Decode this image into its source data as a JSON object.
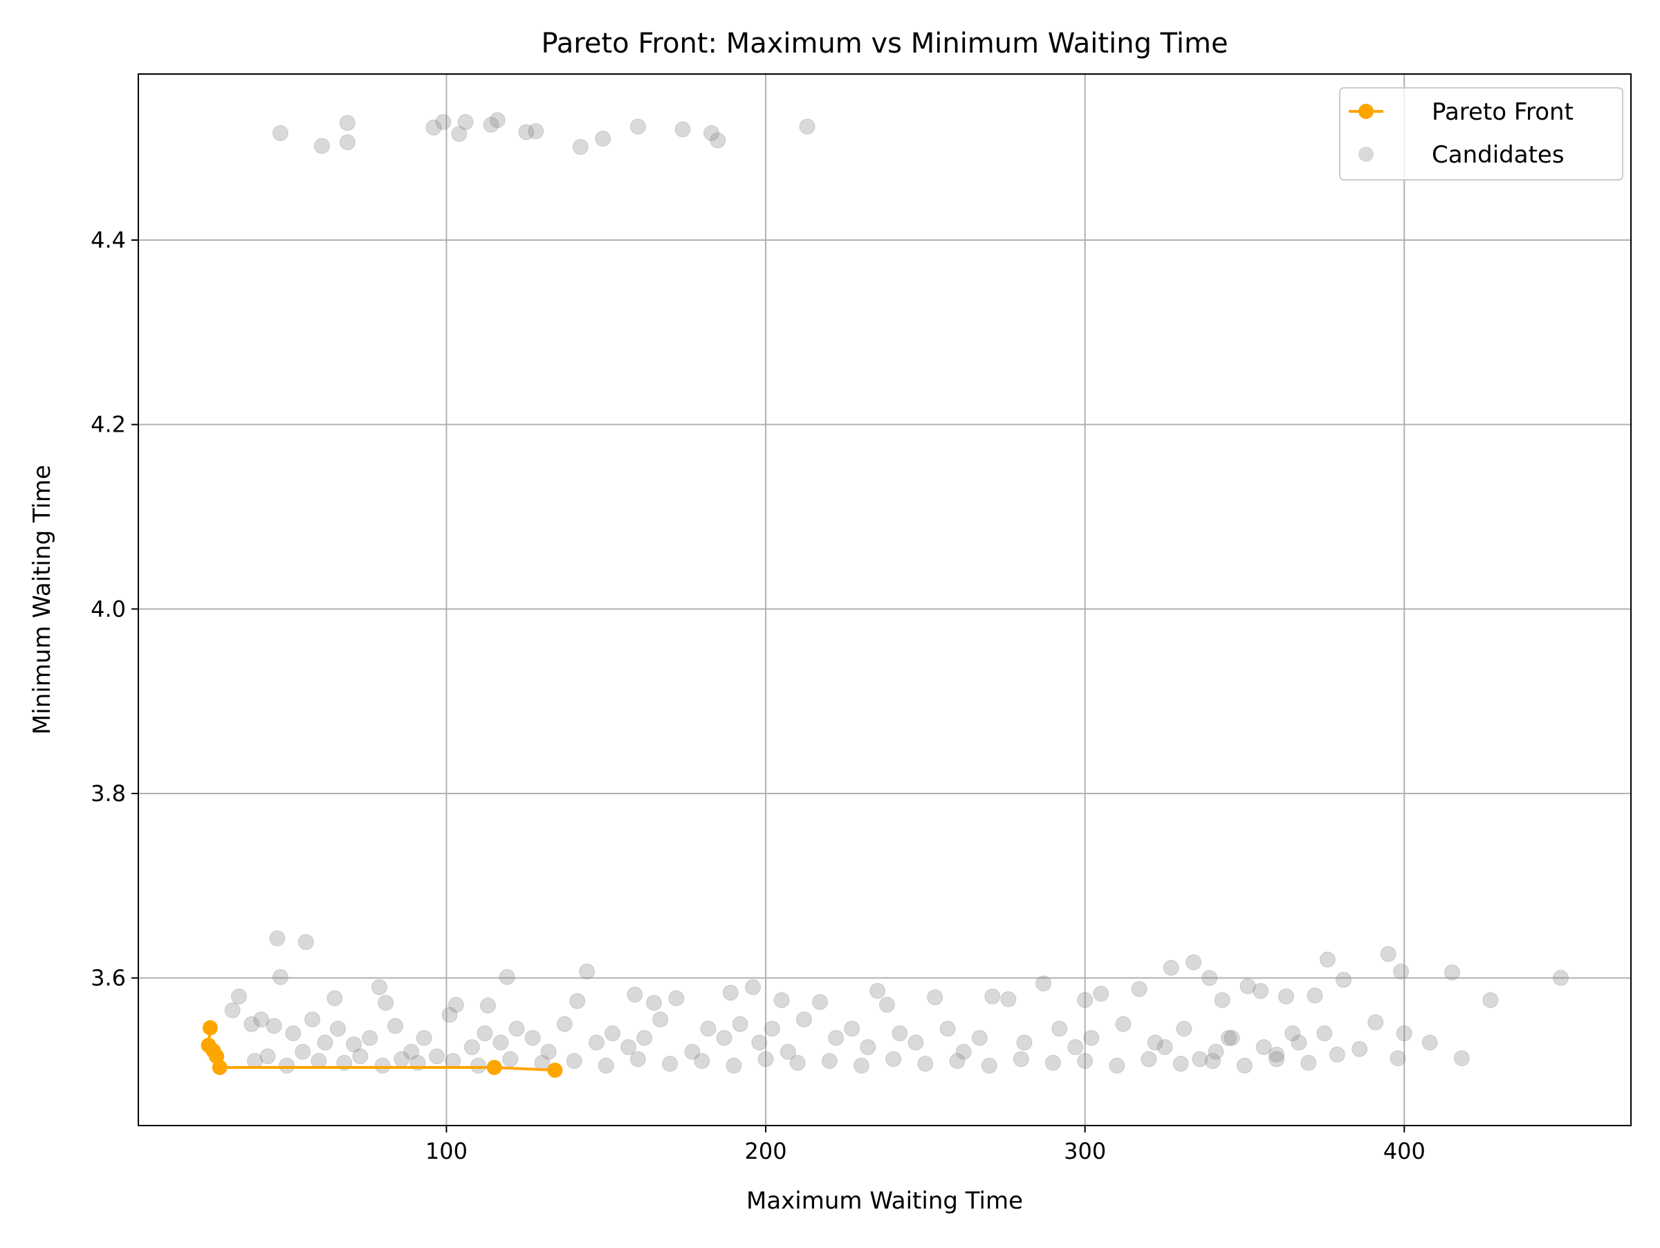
{
  "chart_data": {
    "type": "scatter",
    "title": "Pareto Front: Maximum vs Minimum Waiting Time",
    "xlabel": "Maximum Waiting Time",
    "ylabel": "Minimum Waiting Time",
    "xlim": [
      3.5,
      471
    ],
    "ylim": [
      3.44,
      4.58
    ],
    "x_ticks": [
      100,
      200,
      300,
      400
    ],
    "y_ticks": [
      3.6,
      3.8,
      4.0,
      4.2,
      4.4
    ],
    "x_tick_labels": [
      "100",
      "200",
      "300",
      "400"
    ],
    "y_tick_labels": [
      "3.6",
      "3.8",
      "4.0",
      "4.2",
      "4.4"
    ],
    "grid": true,
    "legend_position": "top-right",
    "colors": {
      "pareto": "#FFA500",
      "candidates": "#808080"
    },
    "series": [
      {
        "name": "Pareto Front",
        "kind": "line-with-markers",
        "points": [
          [
            26,
            3.546
          ],
          [
            25.5,
            3.527
          ],
          [
            27,
            3.521
          ],
          [
            28,
            3.515
          ],
          [
            29,
            3.503
          ],
          [
            115,
            3.503
          ],
          [
            134,
            3.5
          ]
        ]
      },
      {
        "name": "Candidates",
        "kind": "scatter",
        "points": [
          [
            48,
            4.516
          ],
          [
            61,
            4.502
          ],
          [
            69,
            4.527
          ],
          [
            69,
            4.506
          ],
          [
            96,
            4.522
          ],
          [
            99,
            4.528
          ],
          [
            104,
            4.515
          ],
          [
            106,
            4.528
          ],
          [
            114,
            4.525
          ],
          [
            116,
            4.53
          ],
          [
            125,
            4.517
          ],
          [
            128,
            4.518
          ],
          [
            142,
            4.501
          ],
          [
            149,
            4.51
          ],
          [
            160,
            4.523
          ],
          [
            174,
            4.52
          ],
          [
            183,
            4.516
          ],
          [
            185,
            4.508
          ],
          [
            213,
            4.523
          ],
          [
            47,
            3.643
          ],
          [
            56,
            3.639
          ],
          [
            48,
            3.601
          ],
          [
            65,
            3.578
          ],
          [
            79,
            3.59
          ],
          [
            81,
            3.573
          ],
          [
            101,
            3.56
          ],
          [
            103,
            3.571
          ],
          [
            113,
            3.57
          ],
          [
            119,
            3.601
          ],
          [
            144,
            3.607
          ],
          [
            141,
            3.575
          ],
          [
            159,
            3.582
          ],
          [
            165,
            3.573
          ],
          [
            172,
            3.578
          ],
          [
            189,
            3.584
          ],
          [
            196,
            3.59
          ],
          [
            205,
            3.576
          ],
          [
            217,
            3.574
          ],
          [
            235,
            3.586
          ],
          [
            238,
            3.571
          ],
          [
            253,
            3.579
          ],
          [
            271,
            3.58
          ],
          [
            276,
            3.577
          ],
          [
            287,
            3.594
          ],
          [
            300,
            3.576
          ],
          [
            305,
            3.583
          ],
          [
            317,
            3.588
          ],
          [
            327,
            3.611
          ],
          [
            334,
            3.617
          ],
          [
            339,
            3.6
          ],
          [
            343,
            3.576
          ],
          [
            351,
            3.591
          ],
          [
            355,
            3.586
          ],
          [
            363,
            3.58
          ],
          [
            372,
            3.581
          ],
          [
            376,
            3.62
          ],
          [
            381,
            3.598
          ],
          [
            391,
            3.552
          ],
          [
            395,
            3.626
          ],
          [
            399,
            3.607
          ],
          [
            415,
            3.606
          ],
          [
            427,
            3.576
          ],
          [
            449,
            3.6
          ],
          [
            400,
            3.54
          ],
          [
            408,
            3.53
          ],
          [
            418,
            3.513
          ],
          [
            398,
            3.513
          ],
          [
            386,
            3.523
          ],
          [
            379,
            3.517
          ],
          [
            375,
            3.54
          ],
          [
            367,
            3.53
          ],
          [
            360,
            3.517
          ],
          [
            356,
            3.525
          ],
          [
            345,
            3.535
          ],
          [
            336,
            3.512
          ],
          [
            325,
            3.525
          ],
          [
            35,
            3.58
          ],
          [
            33,
            3.565
          ],
          [
            39,
            3.55
          ],
          [
            42,
            3.555
          ],
          [
            46,
            3.548
          ],
          [
            52,
            3.54
          ],
          [
            58,
            3.555
          ],
          [
            62,
            3.53
          ],
          [
            66,
            3.545
          ],
          [
            71,
            3.528
          ],
          [
            76,
            3.535
          ],
          [
            84,
            3.548
          ],
          [
            89,
            3.52
          ],
          [
            93,
            3.535
          ],
          [
            97,
            3.515
          ],
          [
            108,
            3.525
          ],
          [
            112,
            3.54
          ],
          [
            117,
            3.53
          ],
          [
            122,
            3.545
          ],
          [
            127,
            3.535
          ],
          [
            132,
            3.52
          ],
          [
            137,
            3.55
          ],
          [
            147,
            3.53
          ],
          [
            152,
            3.54
          ],
          [
            157,
            3.525
          ],
          [
            162,
            3.535
          ],
          [
            167,
            3.555
          ],
          [
            177,
            3.52
          ],
          [
            182,
            3.545
          ],
          [
            187,
            3.535
          ],
          [
            192,
            3.55
          ],
          [
            198,
            3.53
          ],
          [
            202,
            3.545
          ],
          [
            207,
            3.52
          ],
          [
            212,
            3.555
          ],
          [
            222,
            3.535
          ],
          [
            227,
            3.545
          ],
          [
            232,
            3.525
          ],
          [
            242,
            3.54
          ],
          [
            247,
            3.53
          ],
          [
            257,
            3.545
          ],
          [
            262,
            3.52
          ],
          [
            267,
            3.535
          ],
          [
            281,
            3.53
          ],
          [
            292,
            3.545
          ],
          [
            297,
            3.525
          ],
          [
            302,
            3.535
          ],
          [
            312,
            3.55
          ],
          [
            322,
            3.53
          ],
          [
            331,
            3.545
          ],
          [
            341,
            3.52
          ],
          [
            346,
            3.535
          ],
          [
            365,
            3.54
          ],
          [
            40,
            3.51
          ],
          [
            44,
            3.515
          ],
          [
            50,
            3.505
          ],
          [
            55,
            3.52
          ],
          [
            60,
            3.51
          ],
          [
            68,
            3.508
          ],
          [
            73,
            3.515
          ],
          [
            80,
            3.505
          ],
          [
            86,
            3.512
          ],
          [
            91,
            3.508
          ],
          [
            102,
            3.51
          ],
          [
            110,
            3.505
          ],
          [
            120,
            3.512
          ],
          [
            130,
            3.508
          ],
          [
            140,
            3.51
          ],
          [
            150,
            3.505
          ],
          [
            160,
            3.512
          ],
          [
            170,
            3.507
          ],
          [
            180,
            3.51
          ],
          [
            190,
            3.505
          ],
          [
            200,
            3.512
          ],
          [
            210,
            3.508
          ],
          [
            220,
            3.51
          ],
          [
            230,
            3.505
          ],
          [
            240,
            3.512
          ],
          [
            250,
            3.507
          ],
          [
            260,
            3.51
          ],
          [
            270,
            3.505
          ],
          [
            280,
            3.512
          ],
          [
            290,
            3.508
          ],
          [
            300,
            3.51
          ],
          [
            310,
            3.505
          ],
          [
            320,
            3.512
          ],
          [
            330,
            3.507
          ],
          [
            340,
            3.51
          ],
          [
            350,
            3.505
          ],
          [
            360,
            3.512
          ],
          [
            370,
            3.508
          ]
        ]
      }
    ]
  }
}
